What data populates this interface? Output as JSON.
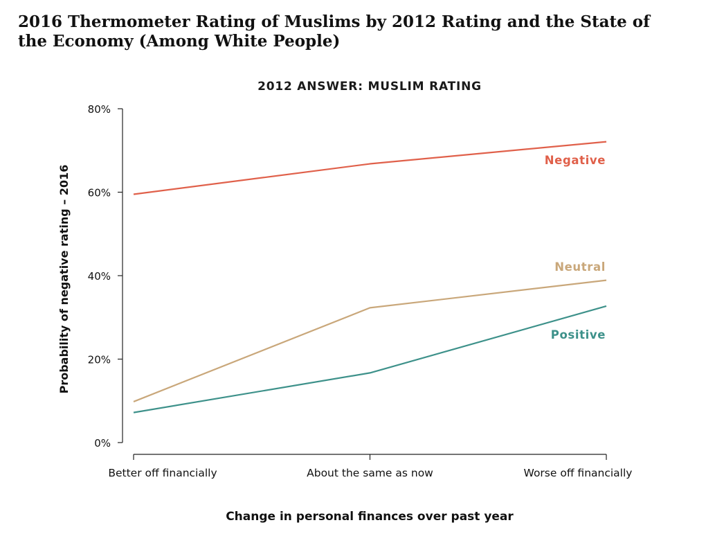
{
  "title": "2016 Thermometer Rating of Muslims by 2012 Rating and the State of the Economy (Among White People)",
  "chart_data": {
    "type": "line",
    "subtitle": "2012 ANSWER: MUSLIM RATING",
    "xlabel": "Change in personal finances over past year",
    "ylabel": "Probability of negative rating – 2016",
    "categories": [
      "Better off financially",
      "About the same as now",
      "Worse off financially"
    ],
    "yticks": [
      "0%",
      "20%",
      "40%",
      "60%",
      "80%"
    ],
    "ylim": [
      0,
      80
    ],
    "grid": false,
    "series": [
      {
        "name": "Negative",
        "color": "#e0604a",
        "values": [
          59.5,
          66.8,
          72.1
        ]
      },
      {
        "name": "Neutral",
        "color": "#c9a77a",
        "values": [
          9.8,
          32.3,
          38.9
        ]
      },
      {
        "name": "Positive",
        "color": "#3d918a",
        "values": [
          7.2,
          16.7,
          32.7
        ]
      }
    ]
  }
}
